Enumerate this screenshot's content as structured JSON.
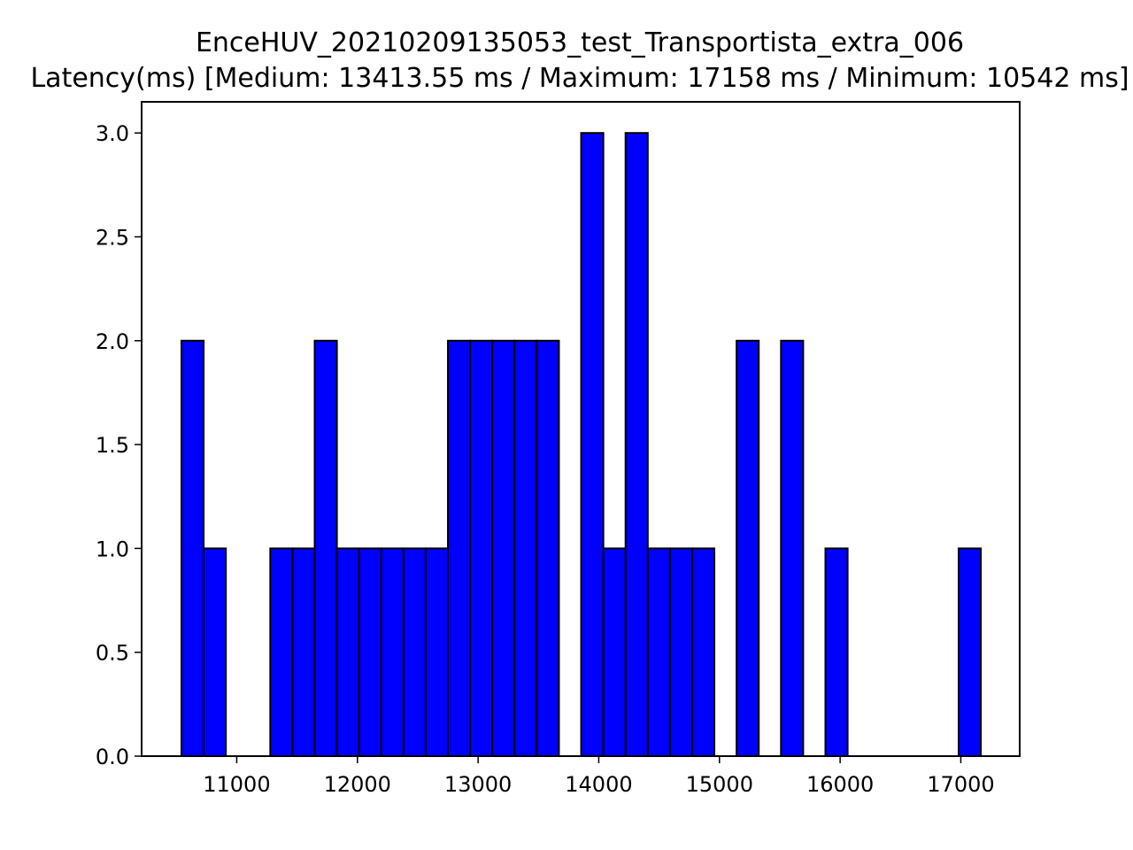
{
  "chart_data": {
    "type": "bar",
    "title": "EnceHUV_20210209135053_test_Transportista_extra_006",
    "subtitle": "Latency(ms) [Medium: 13413.55 ms / Maximum: 17158 ms / Minimum: 10542 ms]",
    "xlabel": "",
    "ylabel": "",
    "xlim": [
      10212,
      17488
    ],
    "ylim": [
      0,
      3.15
    ],
    "grid": false,
    "bar_color": "#0000ff",
    "edge_color": "#000000",
    "x_ticks": [
      11000,
      12000,
      13000,
      14000,
      15000,
      16000,
      17000
    ],
    "y_ticks": [
      0.0,
      0.5,
      1.0,
      1.5,
      2.0,
      2.5,
      3.0
    ],
    "bin_width": 184,
    "bin_starts": [
      10542,
      10726,
      10910,
      11094,
      11278,
      11462,
      11646,
      11830,
      12014,
      12198,
      12382,
      12566,
      12750,
      12934,
      13118,
      13302,
      13486,
      13670,
      13854,
      14038,
      14222,
      14406,
      14590,
      14774,
      14958,
      15142,
      15326,
      15510,
      15694,
      15878,
      16062,
      16246,
      16430,
      16614,
      16798,
      16982
    ],
    "values": [
      2,
      1,
      0,
      0,
      1,
      1,
      2,
      1,
      1,
      1,
      1,
      1,
      2,
      2,
      2,
      2,
      2,
      0,
      3,
      1,
      3,
      1,
      1,
      1,
      0,
      2,
      0,
      2,
      0,
      1,
      0,
      0,
      0,
      0,
      0,
      1
    ]
  }
}
